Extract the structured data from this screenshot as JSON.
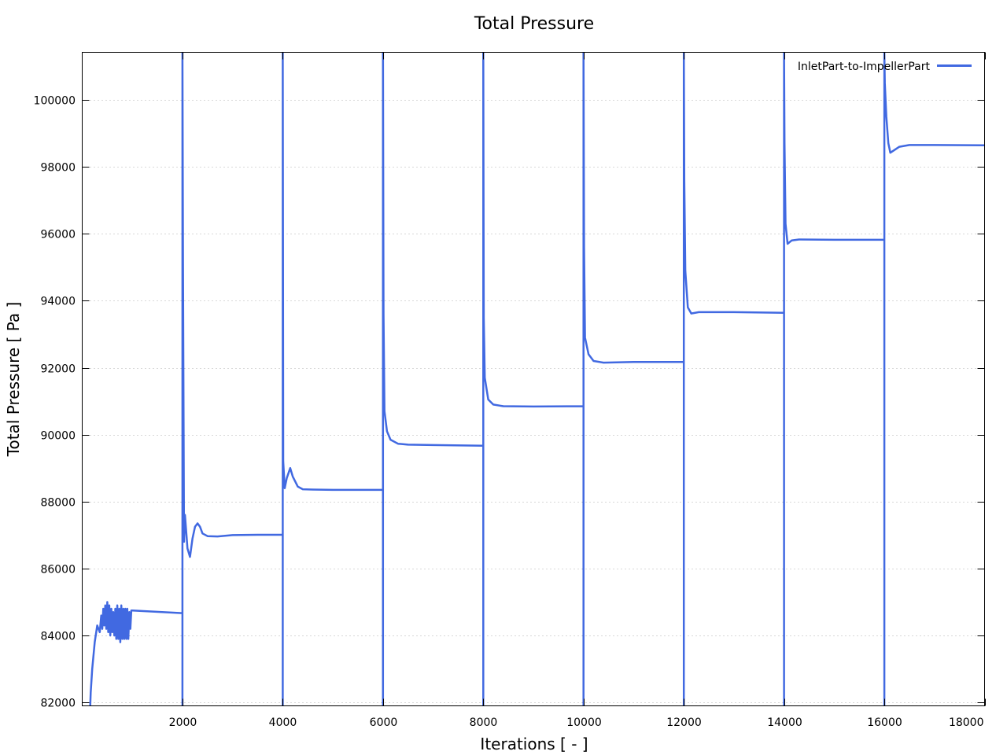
{
  "chart_data": {
    "type": "line",
    "title": "Total Pressure",
    "xlabel": "Iterations [ - ]",
    "ylabel": "Total Pressure [ Pa ]",
    "xlim": [
      0,
      18000
    ],
    "ylim": [
      81900,
      101420
    ],
    "x_ticks": [
      2000,
      4000,
      6000,
      8000,
      10000,
      12000,
      14000,
      16000,
      18000
    ],
    "y_ticks": [
      82000,
      84000,
      86000,
      88000,
      90000,
      92000,
      94000,
      96000,
      98000,
      100000
    ],
    "grid": "horizontal dotted",
    "legend_position": "top-right",
    "series": [
      {
        "name": "InletPart-to-ImpellerPart",
        "color": "#4169e1",
        "points": [
          [
            160,
            81900
          ],
          [
            170,
            82300
          ],
          [
            200,
            83000
          ],
          [
            250,
            83800
          ],
          [
            300,
            84300
          ],
          [
            350,
            84100
          ],
          [
            380,
            84600
          ],
          [
            400,
            84200
          ],
          [
            420,
            84800
          ],
          [
            440,
            84300
          ],
          [
            460,
            84900
          ],
          [
            480,
            84200
          ],
          [
            500,
            85000
          ],
          [
            520,
            84100
          ],
          [
            540,
            84900
          ],
          [
            560,
            84000
          ],
          [
            580,
            84800
          ],
          [
            600,
            84100
          ],
          [
            620,
            84700
          ],
          [
            640,
            84000
          ],
          [
            660,
            84800
          ],
          [
            680,
            83900
          ],
          [
            700,
            84900
          ],
          [
            720,
            83900
          ],
          [
            740,
            84800
          ],
          [
            760,
            83800
          ],
          [
            780,
            84900
          ],
          [
            800,
            83900
          ],
          [
            820,
            84800
          ],
          [
            840,
            83900
          ],
          [
            860,
            84800
          ],
          [
            880,
            83900
          ],
          [
            900,
            84800
          ],
          [
            920,
            83900
          ],
          [
            940,
            84700
          ],
          [
            960,
            84200
          ],
          [
            980,
            84750
          ],
          [
            1000,
            84750
          ],
          [
            2000,
            84670
          ],
          [
            2000,
            81900
          ],
          [
            2000,
            101420
          ],
          [
            2010,
            95100
          ],
          [
            2030,
            86800
          ],
          [
            2050,
            87600
          ],
          [
            2100,
            86600
          ],
          [
            2150,
            86350
          ],
          [
            2200,
            86900
          ],
          [
            2250,
            87250
          ],
          [
            2300,
            87350
          ],
          [
            2350,
            87250
          ],
          [
            2400,
            87050
          ],
          [
            2500,
            86970
          ],
          [
            2700,
            86960
          ],
          [
            3000,
            87000
          ],
          [
            3500,
            87010
          ],
          [
            4000,
            87010
          ],
          [
            4000,
            81900
          ],
          [
            4000,
            101420
          ],
          [
            4010,
            89200
          ],
          [
            4040,
            88400
          ],
          [
            4080,
            88700
          ],
          [
            4150,
            89000
          ],
          [
            4200,
            88750
          ],
          [
            4300,
            88450
          ],
          [
            4400,
            88370
          ],
          [
            4600,
            88360
          ],
          [
            5000,
            88350
          ],
          [
            6000,
            88350
          ],
          [
            6000,
            81900
          ],
          [
            6000,
            101420
          ],
          [
            6010,
            93600
          ],
          [
            6030,
            90700
          ],
          [
            6080,
            90100
          ],
          [
            6150,
            89850
          ],
          [
            6300,
            89730
          ],
          [
            6500,
            89700
          ],
          [
            7000,
            89690
          ],
          [
            8000,
            89670
          ],
          [
            8000,
            81900
          ],
          [
            8000,
            101420
          ],
          [
            8010,
            93500
          ],
          [
            8030,
            91700
          ],
          [
            8100,
            91050
          ],
          [
            8200,
            90900
          ],
          [
            8400,
            90850
          ],
          [
            9000,
            90840
          ],
          [
            10000,
            90850
          ],
          [
            10000,
            81900
          ],
          [
            10000,
            101420
          ],
          [
            10010,
            95600
          ],
          [
            10030,
            92900
          ],
          [
            10100,
            92400
          ],
          [
            10200,
            92200
          ],
          [
            10400,
            92150
          ],
          [
            11000,
            92170
          ],
          [
            12000,
            92170
          ],
          [
            12000,
            81900
          ],
          [
            12000,
            101420
          ],
          [
            12010,
            97600
          ],
          [
            12030,
            94900
          ],
          [
            12080,
            93800
          ],
          [
            12150,
            93620
          ],
          [
            12300,
            93660
          ],
          [
            13000,
            93660
          ],
          [
            14000,
            93640
          ],
          [
            14000,
            81900
          ],
          [
            14000,
            101420
          ],
          [
            14010,
            98700
          ],
          [
            14030,
            96300
          ],
          [
            14070,
            95700
          ],
          [
            14150,
            95800
          ],
          [
            14300,
            95830
          ],
          [
            15000,
            95820
          ],
          [
            16000,
            95820
          ],
          [
            16000,
            81900
          ],
          [
            16000,
            101420
          ],
          [
            16010,
            100500
          ],
          [
            16040,
            99500
          ],
          [
            16080,
            98700
          ],
          [
            16120,
            98420
          ],
          [
            16200,
            98500
          ],
          [
            16300,
            98600
          ],
          [
            16500,
            98650
          ],
          [
            17000,
            98650
          ],
          [
            18000,
            98640
          ]
        ]
      }
    ]
  }
}
